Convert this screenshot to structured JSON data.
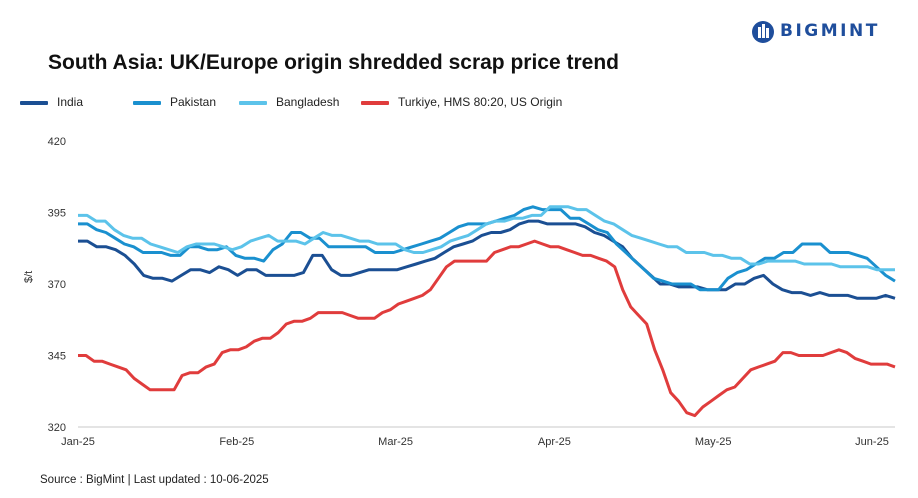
{
  "brand": {
    "name": "BIGMINT",
    "logo_icon": "bigmint-logo-icon",
    "color": "#1f4e9c"
  },
  "source": "Source : BigMint | Last updated : 10-06-2025",
  "chart_data": {
    "type": "line",
    "title": "South Asia: UK/Europe origin shredded scrap price trend",
    "ylabel": "$/t",
    "xlabel": "",
    "ylim": [
      320,
      420
    ],
    "y_ticks": [
      320,
      345,
      370,
      395,
      420
    ],
    "x_ticks": [
      "Jan-25",
      "Feb-25",
      "Mar-25",
      "Apr-25",
      "May-25",
      "Jun-25"
    ],
    "grid": false,
    "legend_position": "top",
    "series": [
      {
        "name": "India",
        "color": "#1b4f93",
        "values": [
          385,
          385,
          383,
          383,
          382,
          380,
          377,
          373,
          372,
          372,
          371,
          373,
          375,
          375,
          374,
          376,
          375,
          373,
          375,
          375,
          373,
          373,
          373,
          373,
          374,
          380,
          380,
          375,
          373,
          373,
          374,
          375,
          375,
          375,
          375,
          376,
          377,
          378,
          379,
          381,
          383,
          384,
          385,
          387,
          388,
          388,
          389,
          391,
          392,
          392,
          391,
          391,
          391,
          391,
          390,
          388,
          387,
          385,
          383,
          379,
          376,
          373,
          370,
          370,
          369,
          369,
          369,
          368,
          368,
          368,
          370,
          370,
          372,
          373,
          370,
          368,
          367,
          367,
          366,
          367,
          366,
          366,
          366,
          365,
          365,
          365,
          366,
          365
        ]
      },
      {
        "name": "Pakistan",
        "color": "#1a90cf",
        "values": [
          391,
          391,
          389,
          388,
          386,
          384,
          383,
          381,
          381,
          381,
          380,
          380,
          383,
          383,
          382,
          382,
          383,
          380,
          379,
          379,
          378,
          382,
          384,
          388,
          388,
          386,
          386,
          383,
          383,
          383,
          383,
          383,
          381,
          381,
          381,
          382,
          383,
          384,
          385,
          386,
          388,
          390,
          391,
          391,
          391,
          392,
          393,
          394,
          396,
          397,
          396,
          396,
          396,
          393,
          393,
          391,
          389,
          388,
          384,
          381,
          378,
          375,
          372,
          371,
          370,
          370,
          370,
          368,
          368,
          368,
          372,
          374,
          375,
          377,
          379,
          379,
          381,
          381,
          384,
          384,
          384,
          381,
          381,
          381,
          380,
          379,
          376,
          373,
          371
        ]
      },
      {
        "name": "Bangladesh",
        "color": "#5cc3ea",
        "values": [
          394,
          394,
          392,
          392,
          389,
          387,
          386,
          386,
          384,
          383,
          382,
          381,
          383,
          384,
          384,
          384,
          383,
          382,
          383,
          385,
          386,
          387,
          385,
          385,
          385,
          384,
          386,
          388,
          387,
          387,
          386,
          385,
          385,
          384,
          384,
          384,
          382,
          381,
          381,
          382,
          383,
          385,
          386,
          387,
          389,
          391,
          392,
          392,
          393,
          393,
          394,
          394,
          397,
          397,
          397,
          396,
          396,
          394,
          392,
          391,
          389,
          387,
          386,
          385,
          384,
          383,
          383,
          381,
          381,
          381,
          380,
          380,
          379,
          379,
          377,
          377,
          378,
          378,
          378,
          378,
          377,
          377,
          377,
          377,
          376,
          376,
          376,
          376,
          375,
          375,
          375
        ]
      },
      {
        "name": "Turkiye, HMS 80:20, US Origin",
        "color": "#e03c3c",
        "values": [
          345,
          345,
          343,
          343,
          342,
          341,
          340,
          337,
          335,
          333,
          333,
          333,
          333,
          338,
          339,
          339,
          341,
          342,
          346,
          347,
          347,
          348,
          350,
          351,
          351,
          353,
          356,
          357,
          357,
          358,
          360,
          360,
          360,
          360,
          359,
          358,
          358,
          358,
          360,
          361,
          363,
          364,
          365,
          366,
          368,
          372,
          376,
          378,
          378,
          378,
          378,
          378,
          381,
          382,
          383,
          383,
          384,
          385,
          384,
          383,
          383,
          382,
          381,
          380,
          380,
          379,
          378,
          376,
          368,
          362,
          359,
          356,
          347,
          340,
          332,
          329,
          325,
          324,
          327,
          329,
          331,
          333,
          334,
          337,
          340,
          341,
          342,
          343,
          346,
          346,
          345,
          345,
          345,
          345,
          346,
          347,
          346,
          344,
          343,
          342,
          342,
          342,
          341
        ]
      }
    ]
  }
}
